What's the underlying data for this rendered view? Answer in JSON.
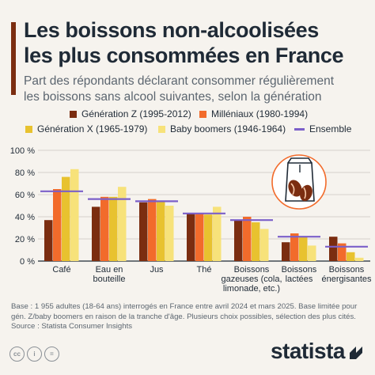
{
  "header": {
    "title_line1": "Les boissons non-alcoolisées",
    "title_line2": "les plus consommées en France",
    "subtitle_line1": "Part des répondants déclarant consommer régulièrement",
    "subtitle_line2": "les boissons sans alcool suivantes, selon la génération"
  },
  "colors": {
    "accent": "#7b2d10",
    "gen_z": "#7b2d10",
    "millennials": "#f26b2b",
    "gen_x": "#e8c22f",
    "boomers": "#f7e27a",
    "ensemble": "#7b5fc9",
    "grid": "#d6d2cc",
    "text": "#1f2a36"
  },
  "chart_data": {
    "type": "bar",
    "categories": [
      [
        "Café"
      ],
      [
        "Eau en",
        "bouteille"
      ],
      [
        "Jus"
      ],
      [
        "Thé"
      ],
      [
        "Boissons",
        "gazeuses (cola,",
        "limonade, etc.)"
      ],
      [
        "Boissons",
        "lactées"
      ],
      [
        "Boissons",
        "énergisantes"
      ]
    ],
    "series": [
      {
        "name": "Génération Z (1995-2012)",
        "color": "#7b2d10",
        "values": [
          37,
          49,
          53,
          43,
          37,
          17,
          22
        ]
      },
      {
        "name": "Milléniaux (1980-1994)",
        "color": "#f26b2b",
        "values": [
          65,
          58,
          56,
          43,
          40,
          25,
          16
        ]
      },
      {
        "name": "Génération X (1965-1979)",
        "color": "#e8c22f",
        "values": [
          76,
          58,
          54,
          42,
          35,
          22,
          8
        ]
      },
      {
        "name": "Baby boomers (1946-1964)",
        "color": "#f7e27a",
        "values": [
          83,
          67,
          50,
          49,
          29,
          14,
          3
        ]
      }
    ],
    "overlay": {
      "name": "Ensemble",
      "type": "line-marker",
      "values": [
        63,
        56,
        54,
        43,
        37,
        22,
        13
      ]
    },
    "y_ticks": [
      "0 %",
      "20 %",
      "40 %",
      "60 %",
      "80 %",
      "100 %"
    ],
    "ylim": [
      0,
      100
    ],
    "grid": true,
    "legend_position": "top"
  },
  "footer": {
    "note_line1": "Base : 1 955 adultes (18-64 ans) interrogés en France entre avril 2024 et mars 2025. Base limitée pour",
    "note_line2": "gén. Z/baby boomers en raison de la tranche d'âge. Plusieurs choix possibles, sélection des plus cités.",
    "source": "Source : Statista Consumer Insights",
    "logo": "statista",
    "license_icons": [
      "cc",
      "i",
      "="
    ]
  }
}
